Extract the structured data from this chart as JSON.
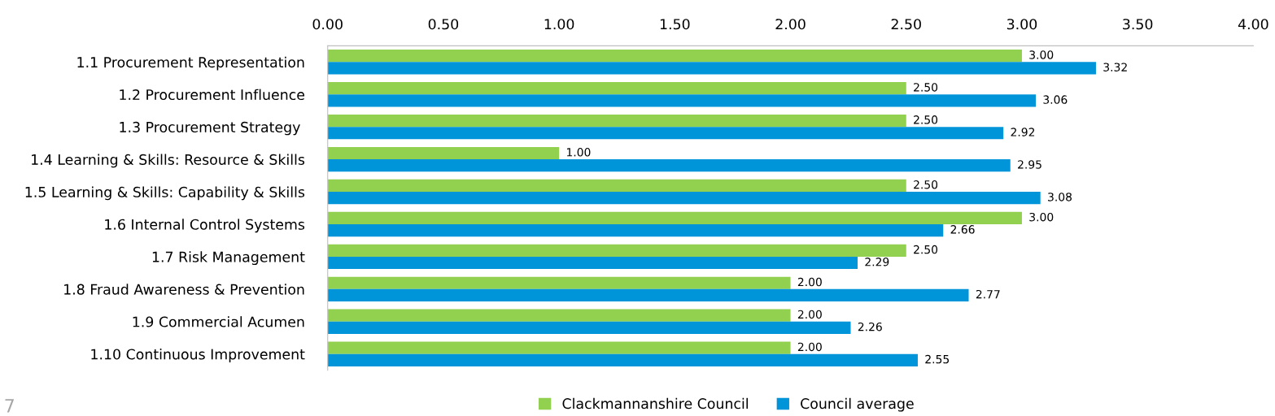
{
  "chart_data": {
    "type": "bar",
    "orientation": "horizontal",
    "categories": [
      "1.1 Procurement Representation",
      "1.2 Procurement Influence",
      "1.3 Procurement Strategy ",
      "1.4 Learning & Skills: Resource & Skills",
      "1.5 Learning & Skills: Capability & Skills",
      "1.6 Internal Control Systems",
      "1.7 Risk Management",
      "1.8 Fraud Awareness & Prevention",
      "1.9 Commercial Acumen",
      "1.10 Continuous Improvement"
    ],
    "series": [
      {
        "name": "Clackmannanshire Council",
        "color": "#92d050",
        "values": [
          3.0,
          2.5,
          2.5,
          1.0,
          2.5,
          3.0,
          2.5,
          2.0,
          2.0,
          2.0
        ],
        "value_labels": [
          "3.00",
          "2.50",
          "2.50",
          "1.00",
          "2.50",
          "3.00",
          "2.50",
          "2.00",
          "2.00",
          "2.00"
        ]
      },
      {
        "name": "Council average",
        "color": "#0094d9",
        "values": [
          3.32,
          3.06,
          2.92,
          2.95,
          3.08,
          2.66,
          2.29,
          2.77,
          2.26,
          2.55
        ],
        "value_labels": [
          "3.32",
          "3.06",
          "2.92",
          "2.95",
          "3.08",
          "2.66",
          "2.29",
          "2.77",
          "2.26",
          "2.55"
        ]
      }
    ],
    "xlim": [
      0,
      4
    ],
    "xticks": [
      {
        "value": 0,
        "label": "0.00"
      },
      {
        "value": 0.5,
        "label": "0.50"
      },
      {
        "value": 1,
        "label": "1.00"
      },
      {
        "value": 1.5,
        "label": "1.50"
      },
      {
        "value": 2,
        "label": "2.00"
      },
      {
        "value": 2.5,
        "label": "2.50"
      },
      {
        "value": 3,
        "label": "3.00"
      },
      {
        "value": 3.5,
        "label": "3.50"
      },
      {
        "value": 4,
        "label": "4.00"
      }
    ],
    "grid": false,
    "legend": "bottom",
    "annotations": [
      "7"
    ]
  }
}
